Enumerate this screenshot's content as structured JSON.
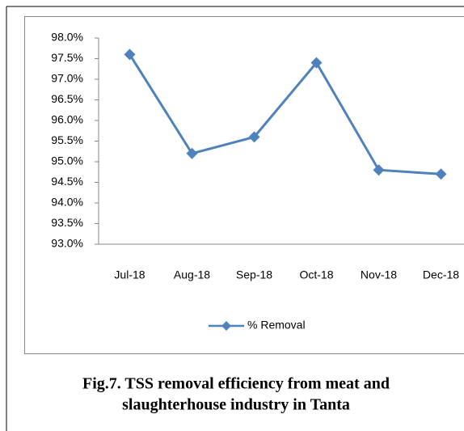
{
  "chart_data": {
    "type": "line",
    "caption": [
      "Fig.7. TSS removal efficiency from meat and",
      "slaughterhouse industry in Tanta"
    ],
    "categories": [
      "Jul-18",
      "Aug-18",
      "Sep-18",
      "Oct-18",
      "Nov-18",
      "Dec-18"
    ],
    "series": [
      {
        "name": "% Removal",
        "color": "#4f81bd",
        "values": [
          97.6,
          95.2,
          95.6,
          97.4,
          94.8,
          94.7
        ]
      }
    ],
    "ylim": [
      93,
      98
    ],
    "yticks": [
      {
        "value": 93,
        "label": "93.0%"
      },
      {
        "value": 93.5,
        "label": "93.5%"
      },
      {
        "value": 94,
        "label": "94.0%"
      },
      {
        "value": 94.5,
        "label": "94.5%"
      },
      {
        "value": 95,
        "label": "95.0%"
      },
      {
        "value": 95.5,
        "label": "95.5%"
      },
      {
        "value": 96,
        "label": "96.0%"
      },
      {
        "value": 96.5,
        "label": "96.5%"
      },
      {
        "value": 97,
        "label": "97.0%"
      },
      {
        "value": 97.5,
        "label": "97.5%"
      },
      {
        "value": 98,
        "label": "98.0%"
      }
    ],
    "grid": false,
    "legend": "bottom"
  }
}
